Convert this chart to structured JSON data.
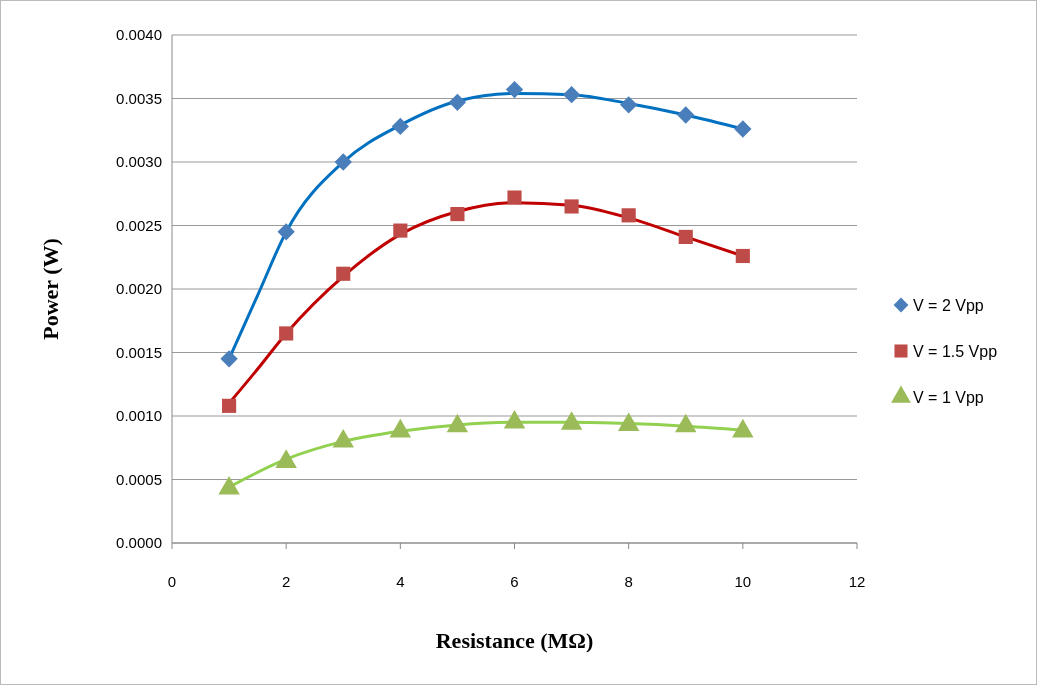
{
  "chart_data": {
    "type": "scatter",
    "xlabel": "Resistance (MΩ)",
    "ylabel": "Power (W)",
    "xlim": [
      0,
      12
    ],
    "xticks": [
      0,
      2,
      4,
      6,
      8,
      10,
      12
    ],
    "ylim": [
      0,
      0.004
    ],
    "yticks": [
      {
        "value": 0,
        "label": "0.0000"
      },
      {
        "value": 0.0005,
        "label": "0.0005"
      },
      {
        "value": 0.001,
        "label": "0.0010"
      },
      {
        "value": 0.0015,
        "label": "0.0015"
      },
      {
        "value": 0.002,
        "label": "0.0020"
      },
      {
        "value": 0.0025,
        "label": "0.0025"
      },
      {
        "value": 0.003,
        "label": "0.0030"
      },
      {
        "value": 0.0035,
        "label": "0.0035"
      },
      {
        "value": 0.004,
        "label": "0.0040"
      }
    ],
    "grid": "y",
    "legend": "right",
    "series": [
      {
        "type": "line",
        "color": "#0070c0",
        "marker": "none",
        "x": [
          1,
          1.5,
          2,
          3,
          4,
          5,
          6,
          7,
          8,
          9,
          10
        ],
        "values": [
          0.00145,
          0.00195,
          0.00245,
          0.003,
          0.00329,
          0.00348,
          0.00354,
          0.00353,
          0.00346,
          0.00337,
          0.00326
        ]
      },
      {
        "type": "line",
        "color": "#c00000",
        "marker": "none",
        "x": [
          1,
          1.5,
          2,
          3,
          4,
          5,
          6,
          7,
          8,
          9,
          10
        ],
        "values": [
          0.0011,
          0.00137,
          0.00165,
          0.0021,
          0.00243,
          0.00261,
          0.00268,
          0.00266,
          0.00256,
          0.00241,
          0.00226
        ]
      },
      {
        "type": "line",
        "color": "#92d050",
        "marker": "none",
        "x": [
          1,
          2,
          3,
          4,
          5,
          6,
          7,
          8,
          9,
          10
        ],
        "values": [
          0.00044,
          0.00066,
          0.0008,
          0.00088,
          0.00093,
          0.00095,
          0.00095,
          0.00094,
          0.00092,
          0.00089
        ]
      },
      {
        "name": "V = 2 Vpp",
        "color": "#4a7ebb",
        "marker": "diamond",
        "x": [
          1,
          2,
          3,
          4,
          5,
          6,
          7,
          8,
          9,
          10
        ],
        "values": [
          0.00145,
          0.00245,
          0.003,
          0.00328,
          0.00347,
          0.00357,
          0.00353,
          0.00345,
          0.00337,
          0.00326
        ]
      },
      {
        "name": "V = 1.5 Vpp",
        "color": "#be4b48",
        "marker": "square",
        "x": [
          1,
          2,
          3,
          4,
          5,
          6,
          7,
          8,
          9,
          10
        ],
        "values": [
          0.00108,
          0.00165,
          0.00212,
          0.00246,
          0.00259,
          0.00272,
          0.00265,
          0.00258,
          0.00241,
          0.00226
        ]
      },
      {
        "name": "V = 1 Vpp",
        "color": "#9bbb59",
        "marker": "triangle",
        "x": [
          1,
          2,
          3,
          4,
          5,
          6,
          7,
          8,
          9,
          10
        ],
        "values": [
          0.00043,
          0.00064,
          0.0008,
          0.00088,
          0.00092,
          0.00095,
          0.00094,
          0.00093,
          0.00092,
          0.00088
        ]
      }
    ]
  }
}
